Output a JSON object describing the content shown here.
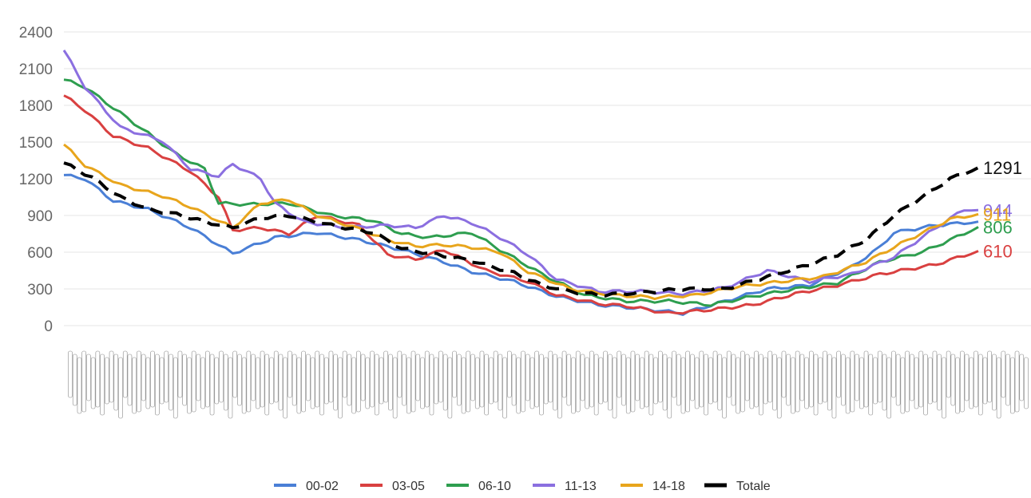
{
  "chart_data": {
    "type": "line",
    "title": "",
    "xlabel": "",
    "ylabel": "",
    "ylim": [
      0,
      2400
    ],
    "yticks": [
      0,
      300,
      600,
      900,
      1200,
      1500,
      1800,
      2100,
      2400
    ],
    "grid": true,
    "legend_position": "bottom",
    "x_count": 100,
    "series": [
      {
        "name": "00-02",
        "color": "#4a7fd6",
        "style": "solid",
        "end_label": "",
        "keypoints": [
          [
            0,
            1230
          ],
          [
            3,
            1200
          ],
          [
            7,
            1020
          ],
          [
            12,
            950
          ],
          [
            18,
            800
          ],
          [
            24,
            590
          ],
          [
            30,
            720
          ],
          [
            36,
            760
          ],
          [
            42,
            700
          ],
          [
            48,
            620
          ],
          [
            54,
            520
          ],
          [
            58,
            440
          ],
          [
            64,
            360
          ],
          [
            70,
            240
          ],
          [
            76,
            170
          ],
          [
            82,
            140
          ],
          [
            88,
            100
          ],
          [
            94,
            200
          ],
          [
            100,
            300
          ],
          [
            106,
            330
          ],
          [
            112,
            480
          ],
          [
            116,
            640
          ],
          [
            118,
            760
          ],
          [
            124,
            820
          ],
          [
            130,
            850
          ]
        ]
      },
      {
        "name": "03-05",
        "color": "#d94040",
        "style": "solid",
        "end_label": "610",
        "keypoints": [
          [
            0,
            1880
          ],
          [
            3,
            1760
          ],
          [
            7,
            1550
          ],
          [
            12,
            1450
          ],
          [
            18,
            1260
          ],
          [
            22,
            1050
          ],
          [
            24,
            780
          ],
          [
            28,
            800
          ],
          [
            32,
            750
          ],
          [
            36,
            900
          ],
          [
            42,
            820
          ],
          [
            46,
            580
          ],
          [
            50,
            540
          ],
          [
            54,
            620
          ],
          [
            60,
            450
          ],
          [
            66,
            360
          ],
          [
            70,
            250
          ],
          [
            76,
            180
          ],
          [
            80,
            160
          ],
          [
            86,
            100
          ],
          [
            92,
            130
          ],
          [
            98,
            170
          ],
          [
            104,
            260
          ],
          [
            110,
            330
          ],
          [
            116,
            420
          ],
          [
            124,
            500
          ],
          [
            130,
            610
          ]
        ]
      },
      {
        "name": "06-10",
        "color": "#2e9e4f",
        "style": "solid",
        "end_label": "806",
        "keypoints": [
          [
            0,
            2010
          ],
          [
            3,
            1950
          ],
          [
            7,
            1780
          ],
          [
            12,
            1570
          ],
          [
            16,
            1400
          ],
          [
            20,
            1280
          ],
          [
            22,
            1000
          ],
          [
            26,
            990
          ],
          [
            32,
            1000
          ],
          [
            38,
            900
          ],
          [
            44,
            860
          ],
          [
            48,
            750
          ],
          [
            52,
            720
          ],
          [
            58,
            760
          ],
          [
            62,
            620
          ],
          [
            68,
            420
          ],
          [
            74,
            250
          ],
          [
            80,
            200
          ],
          [
            86,
            200
          ],
          [
            92,
            170
          ],
          [
            98,
            240
          ],
          [
            104,
            300
          ],
          [
            110,
            350
          ],
          [
            116,
            520
          ],
          [
            122,
            600
          ],
          [
            126,
            700
          ],
          [
            130,
            806
          ]
        ]
      },
      {
        "name": "11-13",
        "color": "#8b6fe0",
        "style": "solid",
        "end_label": "944",
        "keypoints": [
          [
            0,
            2250
          ],
          [
            3,
            1950
          ],
          [
            8,
            1620
          ],
          [
            14,
            1510
          ],
          [
            18,
            1280
          ],
          [
            22,
            1220
          ],
          [
            24,
            1320
          ],
          [
            28,
            1200
          ],
          [
            30,
            1000
          ],
          [
            34,
            850
          ],
          [
            40,
            800
          ],
          [
            46,
            820
          ],
          [
            50,
            800
          ],
          [
            54,
            900
          ],
          [
            58,
            840
          ],
          [
            62,
            720
          ],
          [
            66,
            580
          ],
          [
            70,
            380
          ],
          [
            76,
            280
          ],
          [
            82,
            280
          ],
          [
            88,
            260
          ],
          [
            94,
            310
          ],
          [
            100,
            450
          ],
          [
            106,
            360
          ],
          [
            112,
            420
          ],
          [
            118,
            560
          ],
          [
            124,
            800
          ],
          [
            128,
            950
          ],
          [
            130,
            944
          ]
        ]
      },
      {
        "name": "14-18",
        "color": "#e8a51c",
        "style": "solid",
        "end_label": "911",
        "keypoints": [
          [
            0,
            1480
          ],
          [
            3,
            1310
          ],
          [
            8,
            1150
          ],
          [
            14,
            1060
          ],
          [
            18,
            970
          ],
          [
            24,
            800
          ],
          [
            28,
            1000
          ],
          [
            32,
            1030
          ],
          [
            36,
            900
          ],
          [
            42,
            790
          ],
          [
            46,
            700
          ],
          [
            50,
            650
          ],
          [
            54,
            660
          ],
          [
            58,
            640
          ],
          [
            62,
            600
          ],
          [
            66,
            440
          ],
          [
            72,
            300
          ],
          [
            78,
            250
          ],
          [
            84,
            230
          ],
          [
            90,
            250
          ],
          [
            96,
            320
          ],
          [
            102,
            360
          ],
          [
            108,
            400
          ],
          [
            114,
            520
          ],
          [
            120,
            700
          ],
          [
            126,
            870
          ],
          [
            130,
            911
          ]
        ]
      },
      {
        "name": "Totale",
        "color": "#000000",
        "style": "dashed",
        "end_label": "1291",
        "keypoints": [
          [
            0,
            1330
          ],
          [
            4,
            1210
          ],
          [
            8,
            1050
          ],
          [
            12,
            950
          ],
          [
            16,
            910
          ],
          [
            20,
            850
          ],
          [
            24,
            800
          ],
          [
            28,
            880
          ],
          [
            32,
            900
          ],
          [
            38,
            820
          ],
          [
            44,
            760
          ],
          [
            48,
            630
          ],
          [
            52,
            590
          ],
          [
            58,
            530
          ],
          [
            64,
            430
          ],
          [
            68,
            330
          ],
          [
            72,
            280
          ],
          [
            76,
            250
          ],
          [
            82,
            270
          ],
          [
            88,
            300
          ],
          [
            94,
            300
          ],
          [
            100,
            400
          ],
          [
            106,
            500
          ],
          [
            110,
            580
          ],
          [
            114,
            700
          ],
          [
            118,
            900
          ],
          [
            122,
            1050
          ],
          [
            126,
            1200
          ],
          [
            130,
            1291
          ]
        ]
      }
    ],
    "legend": [
      "00-02",
      "03-05",
      "06-10",
      "11-13",
      "14-18",
      "Totale"
    ]
  }
}
